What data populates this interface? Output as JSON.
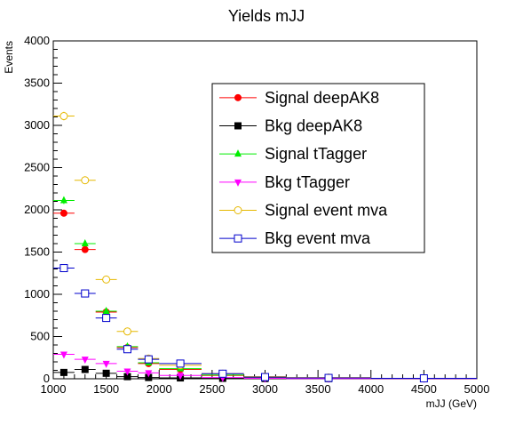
{
  "chart_data": {
    "type": "scatter",
    "title": "Yields mJJ",
    "xlabel": "mJJ (GeV)",
    "ylabel": "Events",
    "xlim": [
      1000,
      5000
    ],
    "ylim": [
      0,
      4000
    ],
    "x_ticks": [
      1000,
      1500,
      2000,
      2500,
      3000,
      3500,
      4000,
      4500,
      5000
    ],
    "y_ticks": [
      0,
      500,
      1000,
      1500,
      2000,
      2500,
      3000,
      3500,
      4000
    ],
    "grid": false,
    "legend_position": "upper-center",
    "bins": [
      [
        1000,
        1200
      ],
      [
        1200,
        1400
      ],
      [
        1400,
        1600
      ],
      [
        1600,
        1800
      ],
      [
        1800,
        2000
      ],
      [
        2000,
        2400
      ],
      [
        2400,
        2800
      ],
      [
        2800,
        3200
      ],
      [
        3200,
        4000
      ],
      [
        4000,
        5000
      ]
    ],
    "series": [
      {
        "name": "Signal deepAK8",
        "color": "#ff0000",
        "marker": "filled-circle",
        "values": [
          1960,
          1530,
          790,
          370,
          180,
          110,
          40,
          15,
          10,
          5
        ]
      },
      {
        "name": "Bkg deepAK8",
        "color": "#000000",
        "marker": "filled-square",
        "values": [
          75,
          110,
          65,
          25,
          15,
          10,
          5,
          3,
          2,
          1
        ]
      },
      {
        "name": "Signal tTagger",
        "color": "#00ee00",
        "marker": "filled-triangle-up",
        "values": [
          2110,
          1600,
          800,
          380,
          190,
          120,
          45,
          18,
          10,
          5
        ]
      },
      {
        "name": "Bkg tTagger",
        "color": "#ff00ff",
        "marker": "filled-triangle-down",
        "values": [
          290,
          230,
          180,
          90,
          70,
          40,
          15,
          5,
          3,
          2
        ]
      },
      {
        "name": "Signal event mva",
        "color": "#e6b800",
        "marker": "open-circle",
        "values": [
          3110,
          2350,
          1175,
          560,
          240,
          160,
          60,
          25,
          15,
          5
        ]
      },
      {
        "name": "Bkg event mva",
        "color": "#0000cc",
        "marker": "open-square",
        "values": [
          1310,
          1010,
          720,
          350,
          230,
          180,
          60,
          20,
          10,
          5
        ]
      }
    ]
  }
}
